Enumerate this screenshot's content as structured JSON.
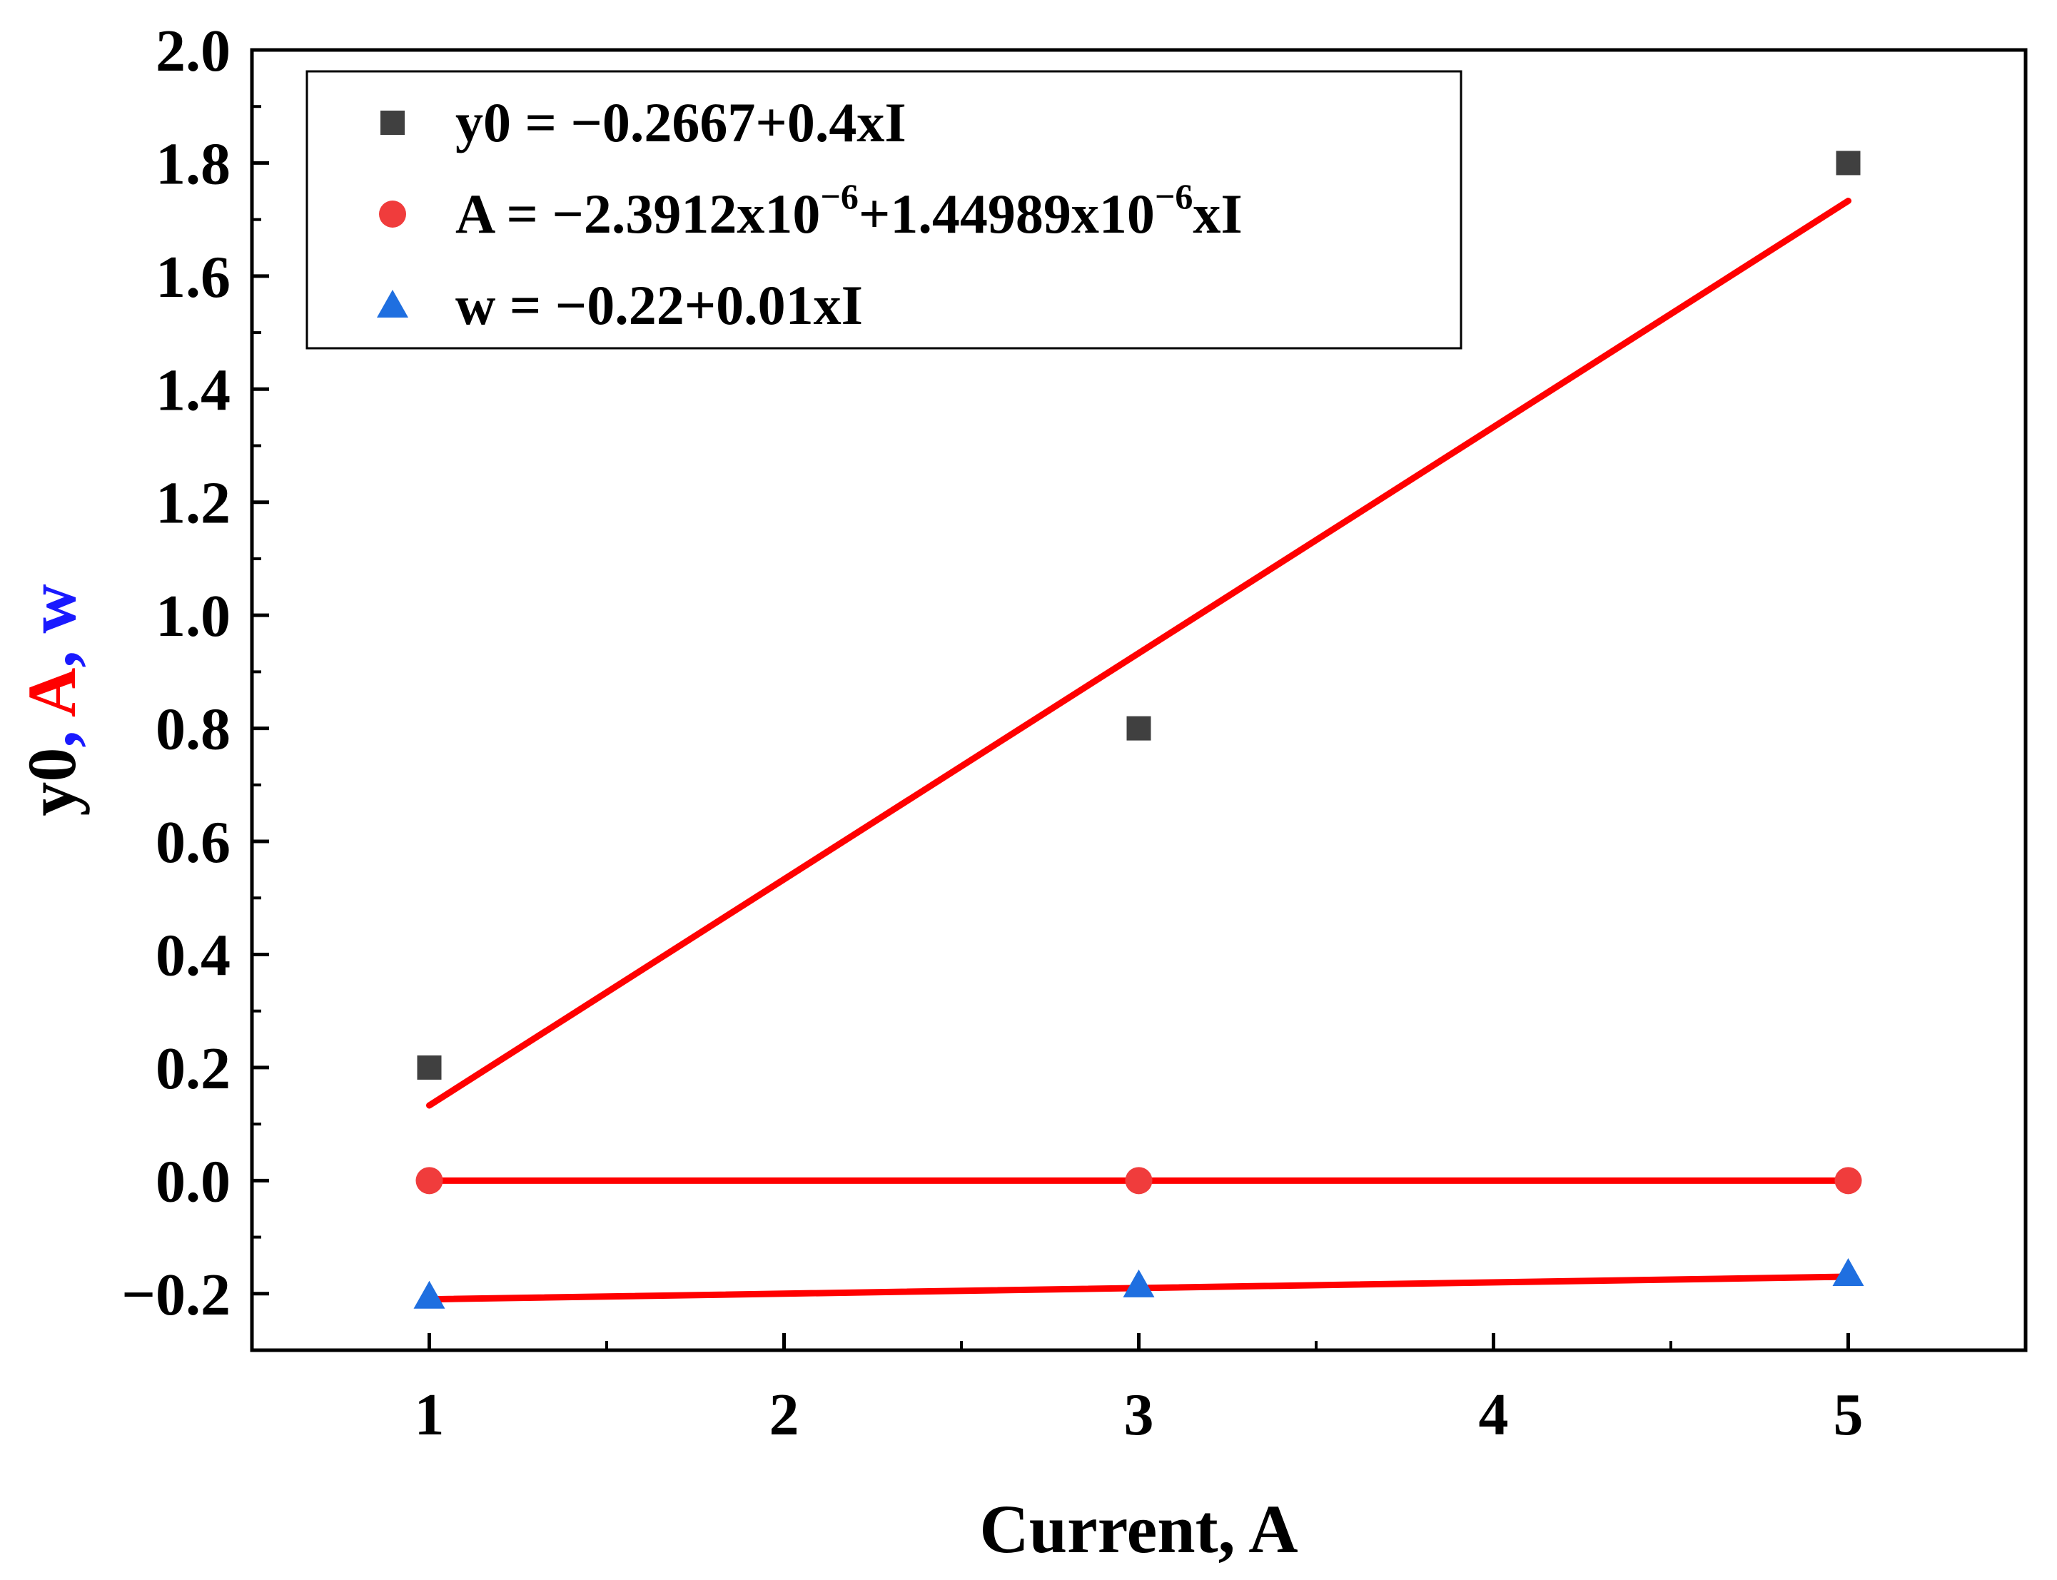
{
  "chart_data": {
    "type": "scatter",
    "xlabel": "Current, A",
    "ylabel_parts": [
      {
        "text": "y0",
        "color": "#000000"
      },
      {
        "text": ", ",
        "color": "#1a1aff"
      },
      {
        "text": "A",
        "color": "#ff0000"
      },
      {
        "text": ", ",
        "color": "#1a1aff"
      },
      {
        "text": "w",
        "color": "#1a1aff"
      }
    ],
    "xlim": [
      0.5,
      5.5
    ],
    "ylim": [
      -0.3,
      2.0
    ],
    "x_ticks": [
      1,
      2,
      3,
      4,
      5
    ],
    "y_ticks": [
      -0.2,
      0.0,
      0.2,
      0.4,
      0.6,
      0.8,
      1.0,
      1.2,
      1.4,
      1.6,
      1.8,
      2.0
    ],
    "y_tick_labels": [
      "−0.2",
      "0.0",
      "0.2",
      "0.4",
      "0.6",
      "0.8",
      "1.0",
      "1.2",
      "1.4",
      "1.6",
      "1.8",
      "2.0"
    ],
    "fit_color": "#ff0000",
    "legend_position": "top-left",
    "series": [
      {
        "id": "y0",
        "marker": "square",
        "color": "#404040",
        "x": [
          1,
          3,
          5
        ],
        "y": [
          0.2,
          0.8,
          1.8
        ],
        "fit": {
          "intercept": -0.2667,
          "slope": 0.4
        },
        "fit_line_endpoints": [
          [
            1,
            0.133
          ],
          [
            5,
            1.733
          ]
        ],
        "legend": {
          "pre": "y0 = −0.2667+0.4xI"
        }
      },
      {
        "id": "A",
        "marker": "circle",
        "color": "#f03c3c",
        "x": [
          1,
          3,
          5
        ],
        "y": [
          0.0,
          0.0,
          0.0
        ],
        "fit": {
          "intercept": -2.3912e-06,
          "slope": 1.44989e-06
        },
        "fit_line_endpoints": [
          [
            1,
            0.0
          ],
          [
            5,
            0.0
          ]
        ],
        "legend": {
          "pre": "A = −2.3912x10",
          "sup1": "−6",
          "mid": "+1.44989x10",
          "sup2": "−6",
          "post": "xI"
        }
      },
      {
        "id": "w",
        "marker": "triangle",
        "color": "#1f6fe0",
        "x": [
          1,
          3,
          5
        ],
        "y": [
          -0.205,
          -0.185,
          -0.165
        ],
        "fit": {
          "intercept": -0.22,
          "slope": 0.01
        },
        "fit_line_endpoints": [
          [
            1,
            -0.21
          ],
          [
            5,
            -0.17
          ]
        ],
        "legend": {
          "pre": "w = −0.22+0.01xI"
        }
      }
    ]
  }
}
